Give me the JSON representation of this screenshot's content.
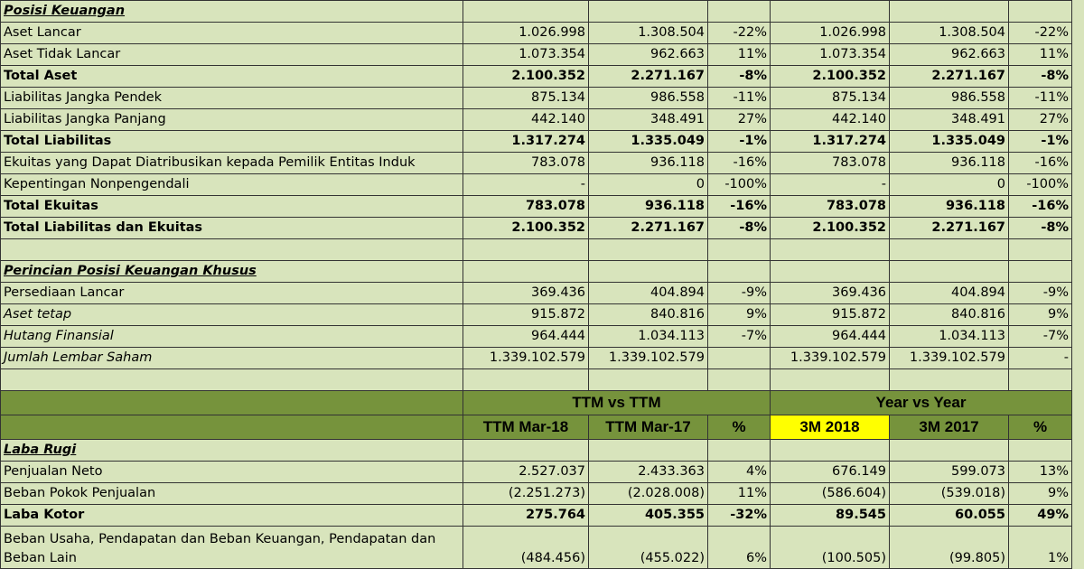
{
  "rows_top": [
    {
      "type": "section",
      "label": "Posisi Keuangan",
      "vals": [
        "",
        "",
        "",
        "",
        "",
        ""
      ]
    },
    {
      "type": "normal",
      "label": "Aset Lancar",
      "vals": [
        "1.026.998",
        "1.308.504",
        "-22%",
        "1.026.998",
        "1.308.504",
        "-22%"
      ]
    },
    {
      "type": "normal",
      "label": "Aset Tidak Lancar",
      "vals": [
        "1.073.354",
        "962.663",
        "11%",
        "1.073.354",
        "962.663",
        "11%"
      ]
    },
    {
      "type": "bold",
      "label": "Total Aset",
      "vals": [
        "2.100.352",
        "2.271.167",
        "-8%",
        "2.100.352",
        "2.271.167",
        "-8%"
      ]
    },
    {
      "type": "normal",
      "label": "Liabilitas Jangka Pendek",
      "vals": [
        "875.134",
        "986.558",
        "-11%",
        "875.134",
        "986.558",
        "-11%"
      ]
    },
    {
      "type": "normal",
      "label": "Liabilitas Jangka Panjang",
      "vals": [
        "442.140",
        "348.491",
        "27%",
        "442.140",
        "348.491",
        "27%"
      ]
    },
    {
      "type": "bold",
      "label": "Total Liabilitas",
      "vals": [
        "1.317.274",
        "1.335.049",
        "-1%",
        "1.317.274",
        "1.335.049",
        "-1%"
      ]
    },
    {
      "type": "normal",
      "label": "Ekuitas yang Dapat Diatribusikan kepada Pemilik Entitas Induk",
      "vals": [
        "783.078",
        "936.118",
        "-16%",
        "783.078",
        "936.118",
        "-16%"
      ]
    },
    {
      "type": "normal",
      "label": "Kepentingan Nonpengendali",
      "vals": [
        "-",
        "0",
        "-100%",
        "-",
        "0",
        "-100%"
      ]
    },
    {
      "type": "bold",
      "label": "Total Ekuitas",
      "vals": [
        "783.078",
        "936.118",
        "-16%",
        "783.078",
        "936.118",
        "-16%"
      ]
    },
    {
      "type": "bold",
      "label": "Total Liabilitas dan Ekuitas",
      "vals": [
        "2.100.352",
        "2.271.167",
        "-8%",
        "2.100.352",
        "2.271.167",
        "-8%"
      ]
    },
    {
      "type": "blank",
      "label": "",
      "vals": [
        "",
        "",
        "",
        "",
        "",
        ""
      ]
    },
    {
      "type": "section",
      "label": "Perincian Posisi Keuangan Khusus",
      "vals": [
        "",
        "",
        "",
        "",
        "",
        ""
      ]
    },
    {
      "type": "normal",
      "label": "Persediaan Lancar",
      "vals": [
        "369.436",
        "404.894",
        "-9%",
        "369.436",
        "404.894",
        "-9%"
      ]
    },
    {
      "type": "italic",
      "label": "Aset tetap",
      "vals": [
        "915.872",
        "840.816",
        "9%",
        "915.872",
        "840.816",
        "9%"
      ]
    },
    {
      "type": "italic",
      "label": "Hutang Finansial",
      "vals": [
        "964.444",
        "1.034.113",
        "-7%",
        "964.444",
        "1.034.113",
        "-7%"
      ]
    },
    {
      "type": "italic",
      "label": "Jumlah Lembar Saham",
      "vals": [
        "1.339.102.579",
        "1.339.102.579",
        "",
        "1.339.102.579",
        "1.339.102.579",
        "-"
      ]
    },
    {
      "type": "blank",
      "label": "",
      "vals": [
        "",
        "",
        "",
        "",
        "",
        ""
      ]
    }
  ],
  "header": {
    "group1": "TTM vs TTM",
    "group2": "Year vs Year",
    "cols": [
      "TTM Mar-18",
      "TTM Mar-17",
      "%",
      "3M 2018",
      "3M 2017",
      "%"
    ]
  },
  "rows_bottom": [
    {
      "type": "section",
      "label": "Laba Rugi",
      "vals": [
        "",
        "",
        "",
        "",
        "",
        ""
      ]
    },
    {
      "type": "normal",
      "label": "Penjualan Neto",
      "vals": [
        "2.527.037",
        "2.433.363",
        "4%",
        "676.149",
        "599.073",
        "13%"
      ]
    },
    {
      "type": "normal",
      "label": "Beban Pokok Penjualan",
      "vals": [
        "(2.251.273)",
        "(2.028.008)",
        "11%",
        "(586.604)",
        "(539.018)",
        "9%"
      ]
    },
    {
      "type": "bold",
      "label": "Laba Kotor",
      "vals": [
        "275.764",
        "405.355",
        "-32%",
        "89.545",
        "60.055",
        "49%"
      ]
    },
    {
      "type": "tall",
      "label": "Beban Usaha, Pendapatan dan Beban Keuangan, Pendapatan dan Beban Lain",
      "vals": [
        "(484.456)",
        "(455.022)",
        "6%",
        "(100.505)",
        "(99.805)",
        "1%"
      ]
    }
  ],
  "colors": {
    "cell_bg": "#d8e4bc",
    "header_bg": "#76933c",
    "highlight": "#ffff00"
  }
}
